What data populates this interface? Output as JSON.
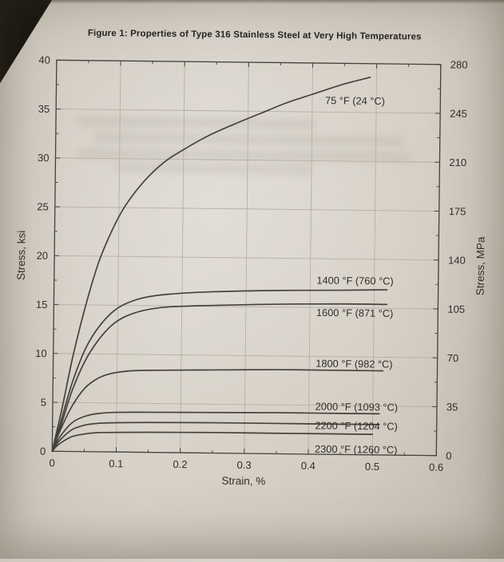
{
  "chart_data": {
    "type": "line",
    "title": "Figure 1: Properties of Type 316 Stainless Steel at Very High Temperatures",
    "xlabel": "Strain, %",
    "ylabel_left": "Stress, ksi",
    "ylabel_right": "Stress, MPa",
    "xlim": [
      0,
      0.6
    ],
    "ylim_left": [
      0,
      40
    ],
    "ylim_right": [
      0,
      280
    ],
    "x_ticks": [
      0,
      0.1,
      0.2,
      0.3,
      0.4,
      0.5,
      0.6
    ],
    "y_ticks_left": [
      0,
      5,
      10,
      15,
      20,
      25,
      30,
      35,
      40
    ],
    "y_ticks_right": [
      0,
      35,
      70,
      105,
      140,
      175,
      210,
      245,
      280
    ],
    "grid": true,
    "line_color": "#45423e",
    "grid_color": "#b5afa4",
    "series": [
      {
        "name": "75 °F (24 °C)",
        "label_pos": [
          0.42,
          36.2
        ],
        "points": [
          [
            0,
            0
          ],
          [
            0.015,
            4.5
          ],
          [
            0.03,
            9.5
          ],
          [
            0.05,
            15
          ],
          [
            0.07,
            19.5
          ],
          [
            0.09,
            22.7
          ],
          [
            0.11,
            25.2
          ],
          [
            0.14,
            27.8
          ],
          [
            0.17,
            29.7
          ],
          [
            0.2,
            31
          ],
          [
            0.24,
            32.5
          ],
          [
            0.28,
            33.7
          ],
          [
            0.32,
            34.8
          ],
          [
            0.36,
            35.9
          ],
          [
            0.4,
            36.8
          ],
          [
            0.45,
            37.9
          ],
          [
            0.49,
            38.6
          ]
        ]
      },
      {
        "name": "1400 °F (760 °C)",
        "label_pos": [
          0.41,
          17.8
        ],
        "points": [
          [
            0,
            0
          ],
          [
            0.015,
            3.5
          ],
          [
            0.03,
            7
          ],
          [
            0.05,
            10.5
          ],
          [
            0.07,
            12.7
          ],
          [
            0.09,
            14.2
          ],
          [
            0.11,
            15.1
          ],
          [
            0.14,
            15.8
          ],
          [
            0.18,
            16.2
          ],
          [
            0.25,
            16.5
          ],
          [
            0.35,
            16.7
          ],
          [
            0.45,
            16.8
          ],
          [
            0.52,
            16.9
          ]
        ]
      },
      {
        "name": "1600 °F (871 °C)",
        "label_pos": [
          0.41,
          14.5
        ],
        "points": [
          [
            0,
            0
          ],
          [
            0.015,
            3
          ],
          [
            0.03,
            6.2
          ],
          [
            0.05,
            9.3
          ],
          [
            0.07,
            11.4
          ],
          [
            0.09,
            12.9
          ],
          [
            0.11,
            13.8
          ],
          [
            0.14,
            14.5
          ],
          [
            0.18,
            14.9
          ],
          [
            0.25,
            15.1
          ],
          [
            0.35,
            15.3
          ],
          [
            0.45,
            15.4
          ],
          [
            0.52,
            15.4
          ]
        ]
      },
      {
        "name": "1800 °F (982 °C)",
        "label_pos": [
          0.41,
          9.3
        ],
        "points": [
          [
            0,
            0
          ],
          [
            0.01,
            1.8
          ],
          [
            0.03,
            4.6
          ],
          [
            0.05,
            6.5
          ],
          [
            0.07,
            7.5
          ],
          [
            0.09,
            8
          ],
          [
            0.12,
            8.3
          ],
          [
            0.16,
            8.4
          ],
          [
            0.25,
            8.5
          ],
          [
            0.35,
            8.6
          ],
          [
            0.45,
            8.6
          ],
          [
            0.515,
            8.6
          ]
        ]
      },
      {
        "name": "2000 °F (1093 °C)",
        "label_pos": [
          0.41,
          4.9
        ],
        "points": [
          [
            0,
            0
          ],
          [
            0.01,
            1.3
          ],
          [
            0.03,
            2.9
          ],
          [
            0.05,
            3.6
          ],
          [
            0.07,
            3.9
          ],
          [
            0.1,
            4.05
          ],
          [
            0.15,
            4.1
          ],
          [
            0.25,
            4.15
          ],
          [
            0.35,
            4.2
          ],
          [
            0.45,
            4.2
          ],
          [
            0.51,
            4.2
          ]
        ]
      },
      {
        "name": "2200 °F (1204 °C)",
        "label_pos": [
          0.41,
          2.95
        ],
        "points": [
          [
            0,
            0
          ],
          [
            0.01,
            1
          ],
          [
            0.03,
            2.2
          ],
          [
            0.05,
            2.7
          ],
          [
            0.07,
            2.9
          ],
          [
            0.1,
            3
          ],
          [
            0.15,
            3.05
          ],
          [
            0.25,
            3.1
          ],
          [
            0.35,
            3.1
          ],
          [
            0.45,
            3.1
          ],
          [
            0.51,
            3.1
          ]
        ]
      },
      {
        "name": "2300 °F (1260 °C)",
        "label_pos": [
          0.41,
          0.55
        ],
        "points": [
          [
            0,
            0
          ],
          [
            0.01,
            0.7
          ],
          [
            0.03,
            1.5
          ],
          [
            0.05,
            1.8
          ],
          [
            0.07,
            1.95
          ],
          [
            0.1,
            2
          ],
          [
            0.15,
            2.05
          ],
          [
            0.25,
            2.1
          ],
          [
            0.35,
            2.1
          ],
          [
            0.45,
            2.1
          ],
          [
            0.5,
            2.1
          ]
        ]
      }
    ]
  }
}
